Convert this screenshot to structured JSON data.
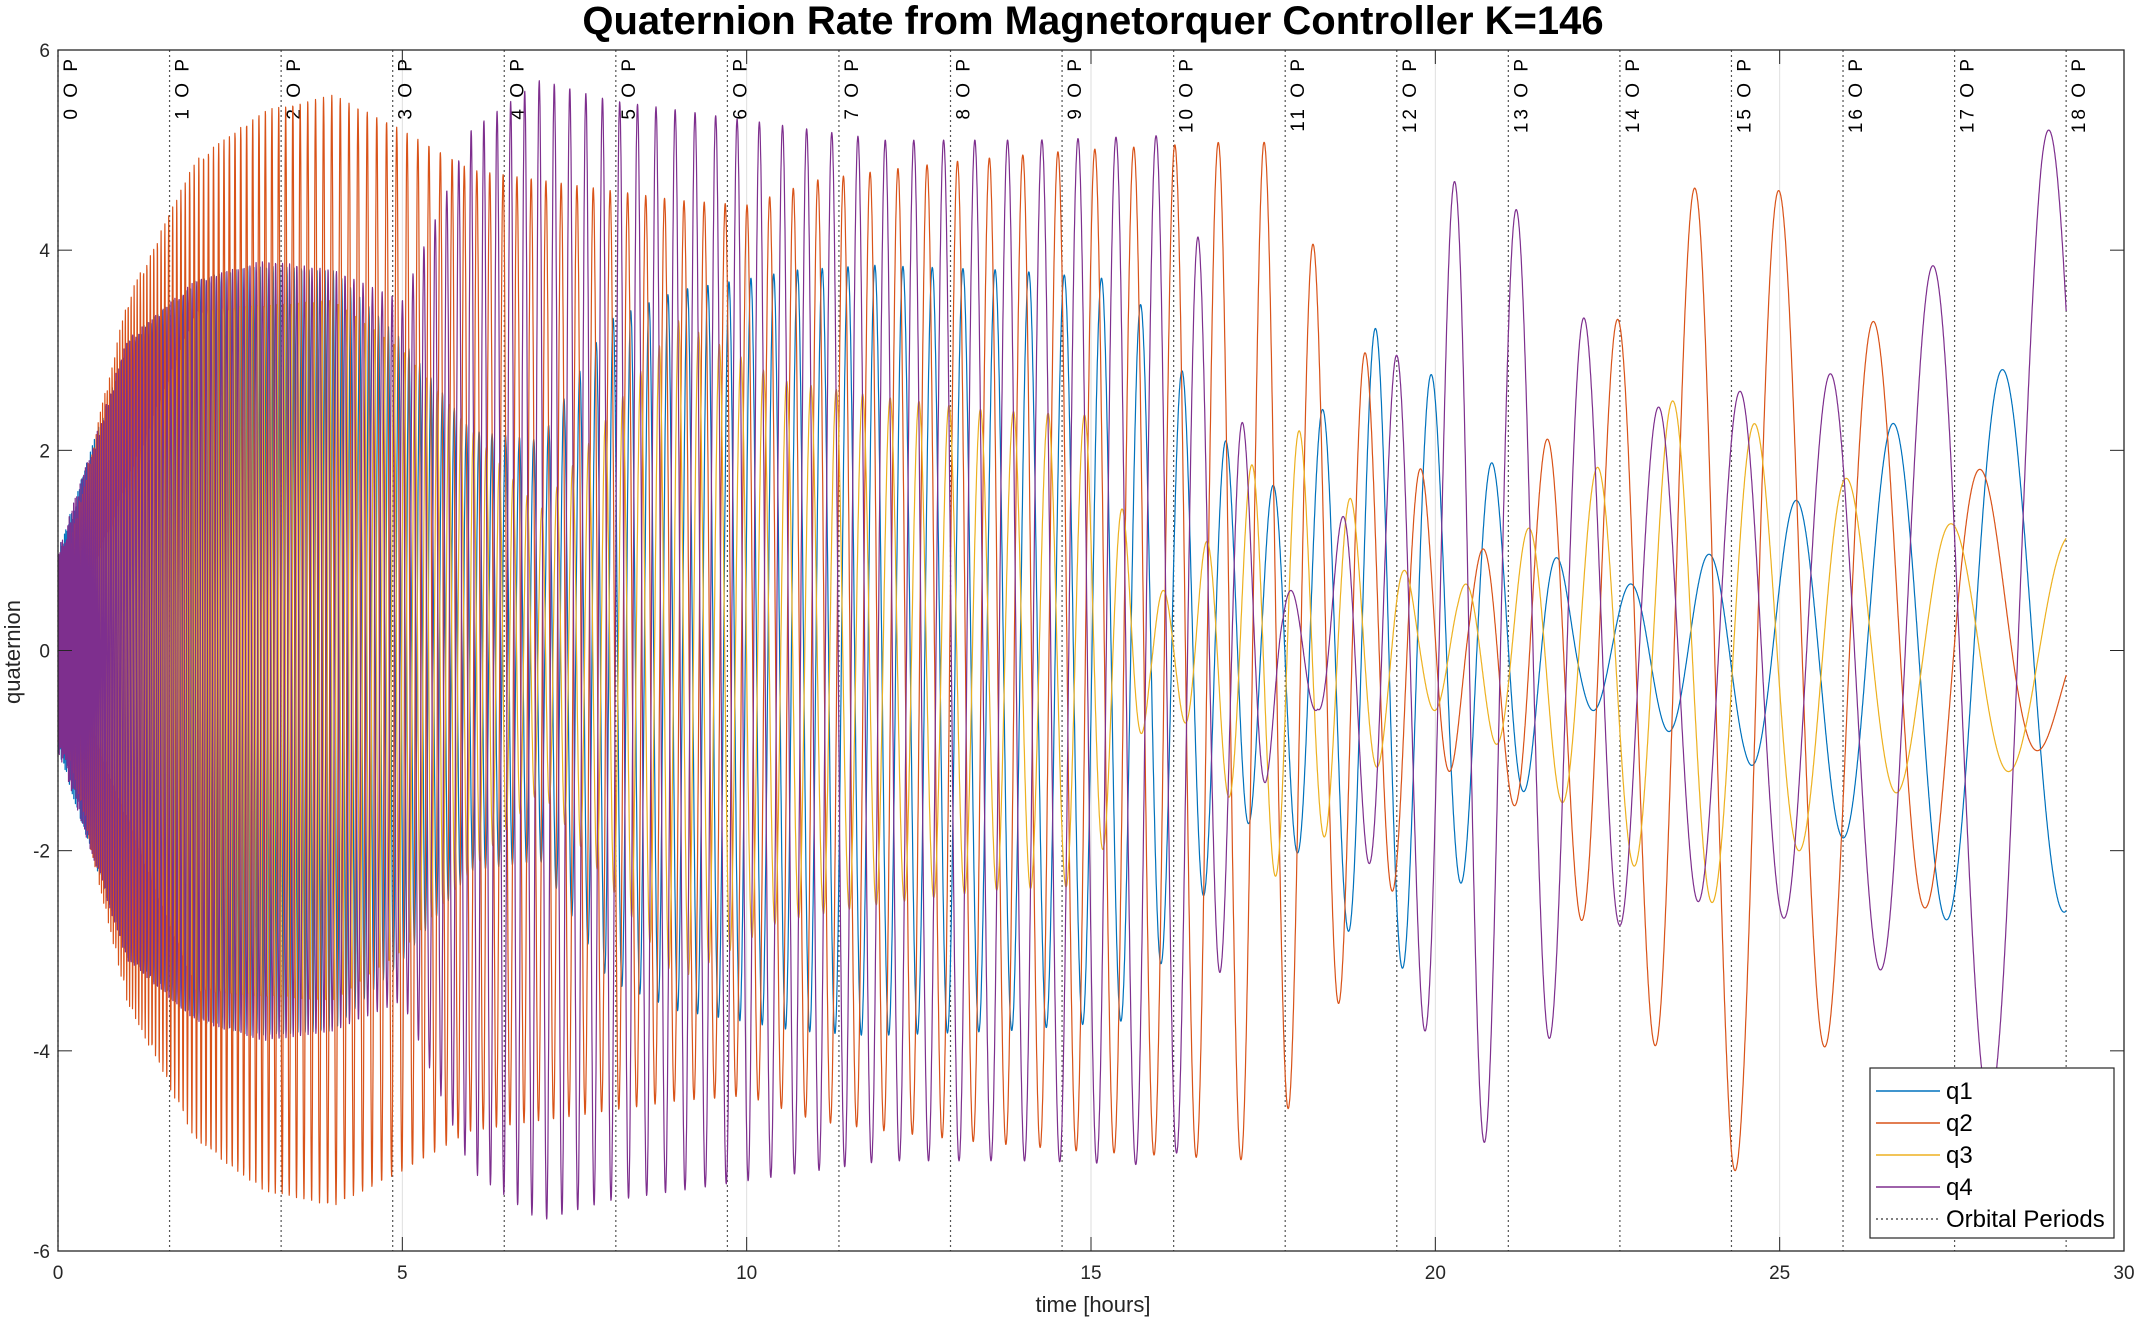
{
  "chart_data": {
    "type": "line",
    "title": "Quaternion Rate from Magnetorquer Controller K=146",
    "xlabel": "time [hours]",
    "ylabel": "quaternion",
    "xlim": [
      0,
      30
    ],
    "ylim": [
      -6,
      6
    ],
    "xticks": [
      "0",
      "5",
      "10",
      "15",
      "20",
      "25",
      "30"
    ],
    "yticks": [
      "-6",
      "-4",
      "-2",
      "0",
      "2",
      "4",
      "6"
    ],
    "grid": "x-only dotted",
    "legend_position": "bottom-right",
    "series": [
      {
        "name": "q1",
        "color": "#0072BD",
        "x": [
          0,
          1,
          2,
          2.8,
          4,
          5,
          6,
          7,
          8,
          9,
          9.9,
          10.7,
          11.8,
          13.8,
          15.5,
          17.5,
          19.3,
          22.2,
          24.5,
          27.8,
          29.2
        ],
        "y": [
          1,
          3.1,
          3.7,
          3.85,
          3.8,
          3.1,
          2.2,
          2.1,
          3.3,
          3.6,
          3.7,
          3.8,
          3.85,
          3.8,
          -3.7,
          1.5,
          3.4,
          0.5,
          -1.1,
          -2.9,
          -2.6
        ]
      },
      {
        "name": "q2",
        "color": "#D95319",
        "x": [
          0,
          1,
          2,
          3,
          4,
          5,
          6,
          7,
          8,
          9,
          10,
          11,
          12,
          13.2,
          14.8,
          17.5,
          20.5,
          24.3,
          29.2
        ],
        "y": [
          0.6,
          3.5,
          4.9,
          5.4,
          5.55,
          5.2,
          4.8,
          4.7,
          4.6,
          4.5,
          4.45,
          4.7,
          4.8,
          4.9,
          -5.0,
          5.1,
          -0.8,
          -5.25,
          0.6
        ]
      },
      {
        "name": "q3",
        "color": "#EDB120",
        "x": [
          0,
          2,
          4,
          5,
          7,
          9,
          10.5,
          11.8,
          13.5,
          15,
          16,
          17.8,
          20,
          23.7,
          27,
          29.2
        ],
        "y": [
          0,
          3.4,
          3.5,
          3.0,
          1.4,
          3.3,
          2.7,
          2.55,
          2.4,
          -2.35,
          -0.3,
          2.4,
          0.4,
          -2.65,
          -1.3,
          1.15
        ]
      },
      {
        "name": "q4",
        "color": "#7E2F8E",
        "x": [
          0,
          1,
          2,
          3,
          4,
          5,
          6,
          7,
          8,
          9,
          10,
          11,
          12,
          13,
          14.2,
          16.2,
          18,
          20.5,
          23,
          26,
          28.8,
          29.2
        ],
        "y": [
          1,
          3.1,
          3.7,
          3.9,
          3.8,
          3.5,
          5.2,
          5.7,
          5.5,
          5.4,
          5.3,
          5.2,
          5.1,
          5.1,
          -5.1,
          5.15,
          0,
          -5.15,
          -2.4,
          2.8,
          5.2,
          5.2
        ]
      },
      {
        "name": "Orbital Periods",
        "color": "#333333",
        "x": [
          0,
          1.62,
          3.24,
          4.86,
          6.48,
          8.1,
          9.72,
          11.34,
          12.96,
          14.58,
          16.2,
          17.82,
          19.44,
          21.06,
          22.68,
          24.3,
          25.92,
          27.54,
          29.16
        ],
        "labels": [
          "0 O P",
          "1 O P",
          "2 O P",
          "3 O P",
          "4 O P",
          "5 O P",
          "6 O P",
          "7 O P",
          "8 O P",
          "9 O P",
          "10 O P",
          "11 O P",
          "12 O P",
          "13 O P",
          "14 O P",
          "15 O P",
          "16 O P",
          "17 O P",
          "18 O P"
        ]
      }
    ]
  }
}
